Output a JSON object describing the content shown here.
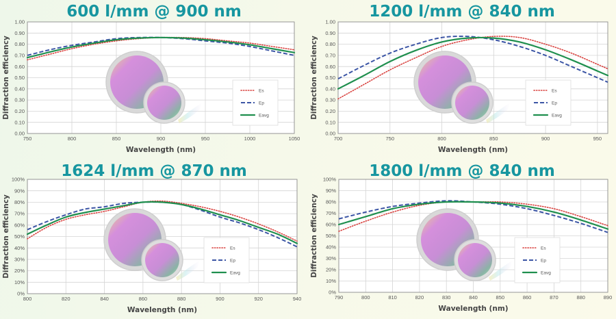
{
  "colors": {
    "title": "#1796a0",
    "Es": "#d9423f",
    "Ep": "#3b55a5",
    "Eavg": "#1f8f4e",
    "grid": "#d4d4d4"
  },
  "chart_data": [
    {
      "type": "line",
      "title": "600 l/mm @ 900 nm",
      "xlabel": "Wavelength (nm)",
      "ylabel": "Diffraction efficiency",
      "xlim": [
        750,
        1050
      ],
      "ylim": [
        0,
        1
      ],
      "xticks": [
        "750",
        "800",
        "850",
        "900",
        "950",
        "1000",
        "1050"
      ],
      "yticks": [
        "0.00",
        "0.10",
        "0.20",
        "0.30",
        "0.40",
        "0.50",
        "0.60",
        "0.70",
        "0.80",
        "0.90",
        "1.00"
      ],
      "grid": true,
      "legend_position": "right",
      "x": [
        750,
        775,
        800,
        825,
        850,
        875,
        900,
        925,
        950,
        975,
        1000,
        1025,
        1050
      ],
      "series": [
        {
          "name": "Es",
          "style": "dotted",
          "values": [
            0.66,
            0.71,
            0.76,
            0.8,
            0.83,
            0.85,
            0.86,
            0.86,
            0.85,
            0.83,
            0.81,
            0.78,
            0.75
          ]
        },
        {
          "name": "Ep",
          "style": "dashed",
          "values": [
            0.7,
            0.75,
            0.79,
            0.82,
            0.85,
            0.86,
            0.86,
            0.85,
            0.83,
            0.81,
            0.78,
            0.74,
            0.7
          ]
        },
        {
          "name": "Eavg",
          "style": "solid",
          "values": [
            0.68,
            0.73,
            0.775,
            0.81,
            0.84,
            0.855,
            0.86,
            0.855,
            0.84,
            0.82,
            0.795,
            0.76,
            0.725
          ]
        }
      ]
    },
    {
      "type": "line",
      "title": "1200 l/mm @ 840 nm",
      "xlabel": "Wavelength (nm)",
      "ylabel": "Diffraction efficiency",
      "xlim": [
        700,
        960
      ],
      "ylim": [
        0,
        1
      ],
      "xticks": [
        "700",
        "750",
        "800",
        "850",
        "900",
        "950"
      ],
      "yticks": [
        "0.00",
        "0.10",
        "0.20",
        "0.30",
        "0.40",
        "0.50",
        "0.60",
        "0.70",
        "0.80",
        "0.90",
        "1.00"
      ],
      "grid": true,
      "legend_position": "right",
      "x": [
        700,
        725,
        750,
        775,
        800,
        825,
        850,
        875,
        900,
        925,
        950,
        960
      ],
      "series": [
        {
          "name": "Es",
          "style": "dotted",
          "values": [
            0.31,
            0.44,
            0.57,
            0.68,
            0.78,
            0.84,
            0.87,
            0.86,
            0.8,
            0.72,
            0.62,
            0.58
          ]
        },
        {
          "name": "Ep",
          "style": "dashed",
          "values": [
            0.49,
            0.61,
            0.72,
            0.8,
            0.86,
            0.87,
            0.84,
            0.78,
            0.7,
            0.6,
            0.5,
            0.46
          ]
        },
        {
          "name": "Eavg",
          "style": "solid",
          "values": [
            0.4,
            0.52,
            0.645,
            0.745,
            0.82,
            0.855,
            0.855,
            0.82,
            0.75,
            0.66,
            0.56,
            0.52
          ]
        }
      ]
    },
    {
      "type": "line",
      "title": "1624 l/mm @ 870 nm",
      "xlabel": "Wavelength (nm)",
      "ylabel": "Diffraction efficiency",
      "xlim": [
        800,
        940
      ],
      "ylim": [
        0,
        100
      ],
      "xticks": [
        "800",
        "820",
        "840",
        "860",
        "880",
        "900",
        "920",
        "940"
      ],
      "yticks": [
        "0%",
        "10%",
        "20%",
        "30%",
        "40%",
        "50%",
        "60%",
        "70%",
        "80%",
        "90%",
        "100%"
      ],
      "grid": true,
      "legend_position": "right",
      "x": [
        800,
        810,
        820,
        830,
        840,
        850,
        860,
        870,
        880,
        890,
        900,
        910,
        920,
        930,
        940
      ],
      "series": [
        {
          "name": "Es",
          "style": "dotted",
          "values": [
            48,
            58,
            65,
            69,
            72,
            76,
            80,
            81,
            79,
            76,
            72,
            67,
            61,
            54,
            46
          ]
        },
        {
          "name": "Ep",
          "style": "dashed",
          "values": [
            56,
            63,
            69,
            74,
            76,
            79,
            80,
            80,
            78,
            73,
            67,
            62,
            56,
            49,
            41
          ]
        },
        {
          "name": "Eavg",
          "style": "solid",
          "values": [
            52,
            60,
            67,
            71,
            74,
            77,
            80,
            80,
            78,
            74,
            69,
            64,
            58,
            52,
            44
          ]
        }
      ]
    },
    {
      "type": "line",
      "title": "1800 l/mm @ 840 nm",
      "xlabel": "Wavelength (nm)",
      "ylabel": "Diffraction efficiency",
      "xlim": [
        790,
        890
      ],
      "ylim": [
        0,
        100
      ],
      "xticks": [
        "790",
        "800",
        "810",
        "820",
        "830",
        "840",
        "850",
        "860",
        "870",
        "880",
        "890"
      ],
      "yticks": [
        "0%",
        "10%",
        "20%",
        "30%",
        "40%",
        "50%",
        "60%",
        "70%",
        "80%",
        "90%",
        "100%"
      ],
      "grid": true,
      "legend_position": "right",
      "x": [
        790,
        800,
        810,
        820,
        830,
        840,
        850,
        860,
        870,
        880,
        890
      ],
      "series": [
        {
          "name": "Es",
          "style": "dotted",
          "values": [
            54,
            63,
            71,
            77,
            80,
            80,
            80,
            78,
            74,
            67,
            59
          ]
        },
        {
          "name": "Ep",
          "style": "dashed",
          "values": [
            65,
            71,
            76,
            79,
            81,
            80,
            78,
            74,
            68,
            61,
            53
          ]
        },
        {
          "name": "Eavg",
          "style": "solid",
          "values": [
            60,
            67,
            74,
            78,
            80,
            80,
            79,
            76,
            71,
            64,
            56
          ]
        }
      ]
    }
  ]
}
